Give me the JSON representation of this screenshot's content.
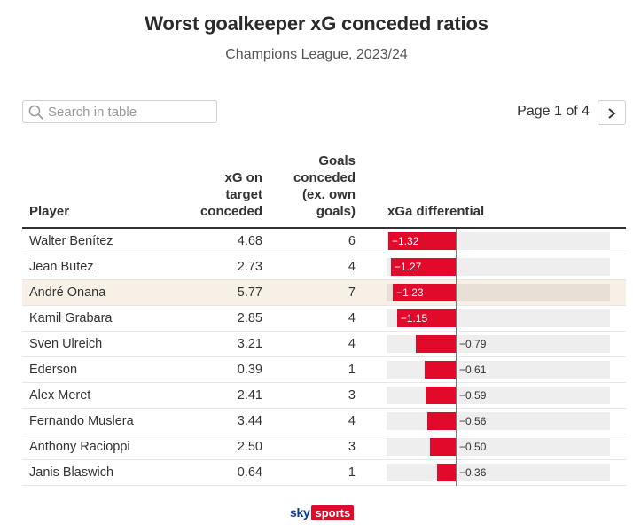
{
  "title": "Worst goalkeeper xG conceded ratios",
  "subtitle": "Champions League, 2023/24",
  "search": {
    "placeholder": "Search in table",
    "value": ""
  },
  "pagination": {
    "label": "Page 1 of 4",
    "next_icon": "chevron-right-icon"
  },
  "logo": {
    "sky": "sky",
    "sports": "sports"
  },
  "colors": {
    "bar": "#e10a2b",
    "highlight_row": "#f6f0e6",
    "bar_background": "#eeeeee"
  },
  "highlight_player": "André Onana",
  "chart_data": {
    "type": "table",
    "columns": [
      "Player",
      "xG on target conceded",
      "Goals conceded (ex. own goals)",
      "xGa differential"
    ],
    "column_headers": {
      "player": "Player",
      "xg_lines": [
        "xG on",
        "target",
        "conceded"
      ],
      "goals_lines": [
        "Goals",
        "conceded",
        "(ex. own",
        "goals)"
      ],
      "diff": "xGa differential"
    },
    "bar_scale": {
      "min": -1.32,
      "max": 2.0
    },
    "rows": [
      {
        "player": "Walter Benítez",
        "xg": "4.68",
        "goals": "6",
        "diff": -1.32,
        "diff_label": "−1.32"
      },
      {
        "player": "Jean Butez",
        "xg": "2.73",
        "goals": "4",
        "diff": -1.27,
        "diff_label": "−1.27"
      },
      {
        "player": "André Onana",
        "xg": "5.77",
        "goals": "7",
        "diff": -1.23,
        "diff_label": "−1.23"
      },
      {
        "player": "Kamil Grabara",
        "xg": "2.85",
        "goals": "4",
        "diff": -1.15,
        "diff_label": "−1.15"
      },
      {
        "player": "Sven Ulreich",
        "xg": "3.21",
        "goals": "4",
        "diff": -0.79,
        "diff_label": "−0.79"
      },
      {
        "player": "Ederson",
        "xg": "0.39",
        "goals": "1",
        "diff": -0.61,
        "diff_label": "−0.61"
      },
      {
        "player": "Alex Meret",
        "xg": "2.41",
        "goals": "3",
        "diff": -0.59,
        "diff_label": "−0.59"
      },
      {
        "player": "Fernando Muslera",
        "xg": "3.44",
        "goals": "4",
        "diff": -0.56,
        "diff_label": "−0.56"
      },
      {
        "player": "Anthony Racioppi",
        "xg": "2.50",
        "goals": "3",
        "diff": -0.5,
        "diff_label": "−0.50"
      },
      {
        "player": "Janis Blaswich",
        "xg": "0.64",
        "goals": "1",
        "diff": -0.36,
        "diff_label": "−0.36"
      }
    ]
  }
}
